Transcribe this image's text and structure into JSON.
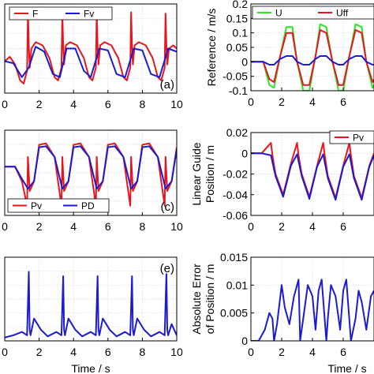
{
  "colors": {
    "red": "#e8141e",
    "blue": "#1b1bd1",
    "green": "#2be52b",
    "grid": "#d9d9d9"
  },
  "chart_data": [
    {
      "type": "line",
      "panel": "a",
      "panel_tag": "(a)",
      "xlim": [
        0,
        10
      ],
      "xticks": [
        "0",
        "2",
        "4",
        "6",
        "8",
        "10"
      ],
      "ylabel": "",
      "xlabel": "",
      "legend": "top",
      "series": [
        {
          "name": "F",
          "color": "red",
          "x": [
            0,
            0.3,
            0.6,
            0.9,
            1.1,
            1.3,
            1.35,
            1.4,
            1.45,
            1.55,
            1.8,
            2.2,
            2.6,
            2.9,
            3.1,
            3.3,
            3.35,
            3.4,
            3.45,
            3.55,
            3.8,
            4.2,
            4.6,
            4.9,
            5.1,
            5.3,
            5.35,
            5.4,
            5.45,
            5.55,
            5.8,
            6.2,
            6.6,
            6.9,
            7.1,
            7.3,
            7.35,
            7.4,
            7.45,
            7.55,
            7.8,
            8.2,
            8.6,
            8.9,
            9.1,
            9.3,
            9.35,
            9.4,
            9.45,
            9.55,
            9.8,
            10
          ],
          "y": [
            0.05,
            0.12,
            0.0,
            -0.25,
            -0.3,
            -0.1,
            0.85,
            0.3,
            -0.05,
            0.25,
            0.35,
            0.3,
            0.1,
            -0.2,
            -0.25,
            -0.05,
            0.82,
            0.3,
            0.0,
            0.3,
            0.35,
            0.3,
            0.1,
            -0.2,
            -0.25,
            -0.05,
            0.8,
            0.3,
            0.0,
            0.3,
            0.35,
            0.3,
            0.1,
            -0.2,
            -0.25,
            -0.05,
            0.82,
            0.3,
            0.0,
            0.3,
            0.35,
            0.3,
            0.1,
            -0.2,
            -0.25,
            -0.05,
            0.8,
            0.3,
            0.0,
            0.25,
            0.3,
            0.25
          ]
        },
        {
          "name": "Fv",
          "color": "blue",
          "x": [
            0,
            0.5,
            1.0,
            1.4,
            1.8,
            2.3,
            2.8,
            3.2,
            3.6,
            4.1,
            4.6,
            5.0,
            5.5,
            6.0,
            6.5,
            7.0,
            7.5,
            8.0,
            8.5,
            9.0,
            9.5,
            10
          ],
          "y": [
            0.05,
            0.02,
            -0.2,
            -0.05,
            0.28,
            0.2,
            -0.15,
            -0.2,
            0.25,
            0.25,
            -0.1,
            -0.2,
            0.25,
            0.22,
            -0.15,
            -0.2,
            0.25,
            0.22,
            -0.15,
            -0.2,
            0.25,
            0.2
          ]
        }
      ]
    },
    {
      "type": "line",
      "panel": "b",
      "ylabel": "Reference / m/s",
      "xlabel": "",
      "ylim": [
        -0.1,
        0.2
      ],
      "yticks": [
        "-0.1",
        "-0.05",
        "0",
        "0.05",
        "0.1",
        "0.15",
        "0.2"
      ],
      "xlim": [
        0,
        8
      ],
      "xticks": [
        "0",
        "2",
        "4",
        "6"
      ],
      "legend": "top",
      "series": [
        {
          "name": "U",
          "color": "green",
          "x": [
            0,
            0.8,
            1.2,
            1.5,
            1.9,
            2.3,
            2.7,
            3.0,
            3.4,
            3.8,
            4.2,
            4.5,
            4.9,
            5.3,
            5.7,
            6.0,
            6.4,
            6.8,
            7.2,
            7.5,
            7.9,
            8
          ],
          "y": [
            0,
            0,
            -0.08,
            -0.09,
            0.02,
            0.12,
            0.12,
            0.0,
            -0.1,
            -0.1,
            0.02,
            0.13,
            0.12,
            0.0,
            -0.1,
            -0.1,
            0.02,
            0.13,
            0.12,
            0.0,
            -0.09,
            -0.08
          ]
        },
        {
          "name": "Uff",
          "color": "red",
          "x": [
            0,
            0.8,
            1.2,
            1.5,
            1.9,
            2.3,
            2.7,
            3.0,
            3.4,
            3.8,
            4.2,
            4.5,
            4.9,
            5.3,
            5.7,
            6.0,
            6.4,
            6.8,
            7.2,
            7.5,
            7.9,
            8
          ],
          "y": [
            0,
            0,
            -0.06,
            -0.07,
            0.02,
            0.1,
            0.1,
            0.0,
            -0.08,
            -0.08,
            0.02,
            0.11,
            0.1,
            0.0,
            -0.08,
            -0.08,
            0.02,
            0.11,
            0.1,
            0.0,
            -0.07,
            -0.06
          ]
        },
        {
          "name": "",
          "color": "blue",
          "x": [
            0,
            0.8,
            1.2,
            1.5,
            1.9,
            2.3,
            2.7,
            3.0,
            3.4,
            3.8,
            4.2,
            4.5,
            4.9,
            5.3,
            5.7,
            6.0,
            6.4,
            6.8,
            7.2,
            7.5,
            7.9,
            8
          ],
          "y": [
            0,
            0,
            -0.01,
            -0.01,
            0.01,
            0.02,
            0.02,
            0.0,
            -0.01,
            -0.01,
            0.01,
            0.02,
            0.02,
            0.0,
            -0.01,
            -0.01,
            0.01,
            0.02,
            0.02,
            0.0,
            -0.01,
            -0.01
          ]
        }
      ]
    },
    {
      "type": "line",
      "panel": "c",
      "panel_tag": "(c)",
      "xlim": [
        0,
        10
      ],
      "xticks": [
        "0",
        "2",
        "4",
        "6",
        "8",
        "10"
      ],
      "ylabel": "",
      "xlabel": "",
      "legend": "bottom-left",
      "series": [
        {
          "name": "Pv",
          "color": "red",
          "x": [
            0,
            0.6,
            1.0,
            1.3,
            1.35,
            1.45,
            1.7,
            2.0,
            2.4,
            2.9,
            3.3,
            3.35,
            3.45,
            3.7,
            4.0,
            4.4,
            4.9,
            5.3,
            5.35,
            5.45,
            5.7,
            6.0,
            6.4,
            6.9,
            7.3,
            7.35,
            7.45,
            7.7,
            8.0,
            8.4,
            8.9,
            9.3,
            9.35,
            9.45,
            9.7,
            10
          ],
          "y": [
            0,
            0,
            -0.3,
            -0.8,
            0.2,
            -0.5,
            -0.3,
            0.45,
            0.48,
            0.2,
            -0.8,
            0.2,
            -0.5,
            -0.3,
            0.45,
            0.48,
            0.2,
            -0.8,
            0.2,
            -0.5,
            -0.3,
            0.45,
            0.48,
            0.2,
            -0.8,
            0.2,
            -0.5,
            -0.3,
            0.45,
            0.48,
            0.2,
            -0.8,
            0.2,
            -0.5,
            -0.3,
            0.4
          ]
        },
        {
          "name": "PD",
          "color": "blue",
          "x": [
            0,
            0.6,
            1.0,
            1.35,
            1.7,
            2.0,
            2.4,
            2.9,
            3.35,
            3.7,
            4.0,
            4.4,
            4.9,
            5.35,
            5.7,
            6.0,
            6.4,
            6.9,
            7.35,
            7.7,
            8.0,
            8.4,
            8.9,
            9.35,
            9.7,
            10
          ],
          "y": [
            0,
            0,
            -0.25,
            -0.45,
            -0.3,
            0.4,
            0.42,
            0.2,
            -0.45,
            -0.3,
            0.4,
            0.42,
            0.2,
            -0.45,
            -0.3,
            0.4,
            0.42,
            0.2,
            -0.45,
            -0.3,
            0.4,
            0.42,
            0.2,
            -0.45,
            -0.3,
            0.35
          ]
        }
      ]
    },
    {
      "type": "line",
      "panel": "d",
      "ylabel": "Linear Guide Position / m",
      "xlabel": "",
      "ylim": [
        -0.06,
        0.02
      ],
      "yticks": [
        "-0.06",
        "-0.04",
        "-0.02",
        "0",
        "0.02"
      ],
      "xlim": [
        0,
        8
      ],
      "xticks": [
        "0",
        "2",
        "4",
        "6"
      ],
      "legend": "top-right",
      "series": [
        {
          "name": "Pv",
          "color": "red",
          "x": [
            0,
            0.7,
            1.3,
            1.4,
            1.6,
            2.1,
            2.6,
            3.0,
            3.1,
            3.3,
            3.8,
            4.3,
            4.7,
            4.8,
            5.0,
            5.5,
            6.0,
            6.4,
            6.5,
            6.7,
            7.2,
            7.7,
            8
          ],
          "y": [
            0,
            0,
            0.01,
            -0.002,
            -0.02,
            -0.04,
            -0.01,
            0.01,
            -0.002,
            -0.02,
            -0.042,
            -0.012,
            0.01,
            -0.002,
            -0.022,
            -0.043,
            -0.012,
            0.01,
            -0.002,
            -0.022,
            -0.043,
            -0.012,
            0.0
          ]
        },
        {
          "name": "",
          "color": "blue",
          "x": [
            0,
            0.7,
            1.3,
            1.6,
            2.1,
            2.6,
            3.0,
            3.3,
            3.8,
            4.3,
            4.7,
            5.0,
            5.5,
            6.0,
            6.4,
            6.7,
            7.2,
            7.7,
            8
          ],
          "y": [
            0,
            0,
            -0.002,
            -0.022,
            -0.042,
            -0.012,
            -0.001,
            -0.022,
            -0.044,
            -0.013,
            -0.001,
            -0.024,
            -0.045,
            -0.013,
            -0.001,
            -0.024,
            -0.045,
            -0.013,
            -0.002
          ]
        }
      ]
    },
    {
      "type": "line",
      "panel": "e",
      "panel_tag": "(e)",
      "xlim": [
        0,
        10
      ],
      "xticks": [
        "0",
        "2",
        "4",
        "6",
        "8",
        "10"
      ],
      "xlabel": "Time / s",
      "ylabel": "",
      "series": [
        {
          "name": "",
          "color": "blue",
          "x": [
            0,
            0.5,
            1.0,
            1.3,
            1.4,
            1.45,
            1.5,
            1.7,
            2.1,
            2.5,
            3.0,
            3.3,
            3.4,
            3.45,
            3.5,
            3.7,
            4.1,
            4.5,
            5.0,
            5.3,
            5.4,
            5.45,
            5.5,
            5.7,
            6.1,
            6.5,
            7.0,
            7.3,
            7.4,
            7.45,
            7.5,
            7.7,
            8.1,
            8.5,
            9.0,
            9.3,
            9.4,
            9.45,
            9.5,
            9.7,
            10
          ],
          "y": [
            0.03,
            0.05,
            0.08,
            0.05,
            0.62,
            0.1,
            0.05,
            0.2,
            0.1,
            0.04,
            0.08,
            0.05,
            0.58,
            0.1,
            0.05,
            0.2,
            0.1,
            0.04,
            0.08,
            0.05,
            0.58,
            0.1,
            0.05,
            0.2,
            0.1,
            0.04,
            0.08,
            0.05,
            0.58,
            0.1,
            0.05,
            0.2,
            0.1,
            0.04,
            0.08,
            0.05,
            0.6,
            0.1,
            0.05,
            0.15,
            0.05
          ]
        }
      ]
    },
    {
      "type": "line",
      "panel": "f",
      "ylabel": "Absolute Error of Position / m",
      "xlabel": "Time / s",
      "ylim": [
        0,
        0.015
      ],
      "yticks": [
        "0",
        "0.005",
        "0.01",
        "0.015"
      ],
      "xlim": [
        0,
        8
      ],
      "xticks": [
        "0",
        "2",
        "4",
        "6"
      ],
      "series": [
        {
          "name": "",
          "color": "blue",
          "x": [
            0,
            0.5,
            0.9,
            1.2,
            1.4,
            1.5,
            1.7,
            2.0,
            2.2,
            2.5,
            2.8,
            3.1,
            3.2,
            3.4,
            3.7,
            4.0,
            4.2,
            4.4,
            4.6,
            4.9,
            5.0,
            5.2,
            5.5,
            5.8,
            6.0,
            6.2,
            6.5,
            6.8,
            7.0,
            7.2,
            7.5,
            7.8,
            8
          ],
          "y": [
            0,
            0,
            0.002,
            0.005,
            0.004,
            0.0,
            0.003,
            0.01,
            0.006,
            0.003,
            0.008,
            0.011,
            0.0,
            0.004,
            0.01,
            0.008,
            0.002,
            0.009,
            0.011,
            0.0,
            0.004,
            0.01,
            0.008,
            0.002,
            0.009,
            0.011,
            0.0,
            0.004,
            0.009,
            0.007,
            0.002,
            0.008,
            0.009
          ]
        }
      ]
    }
  ]
}
